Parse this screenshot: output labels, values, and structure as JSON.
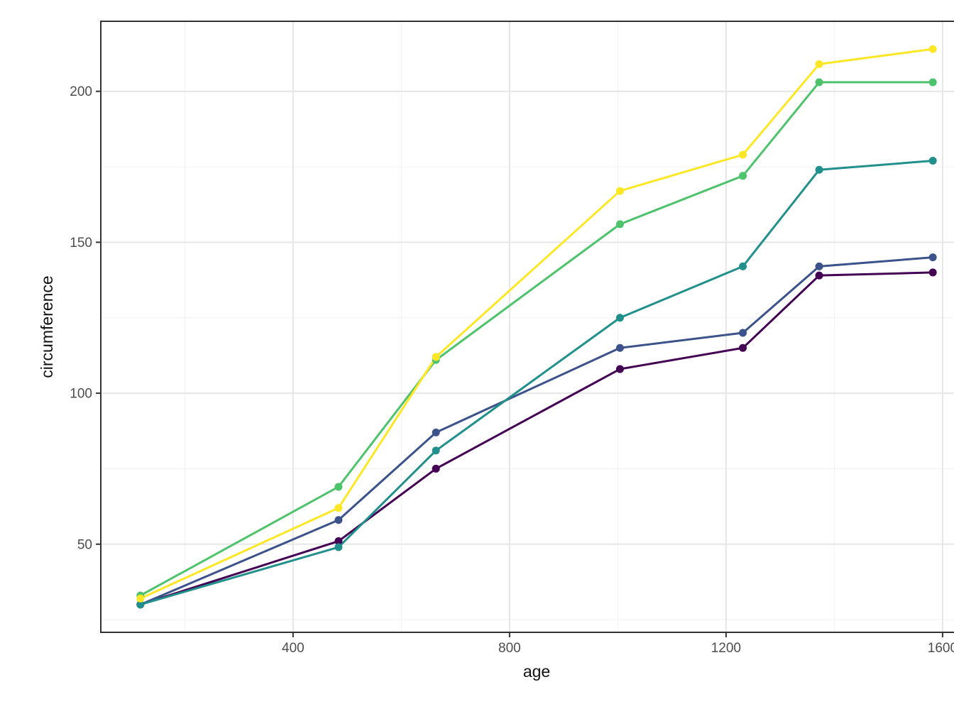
{
  "chart_data": {
    "type": "line",
    "title": "",
    "xlabel": "age",
    "ylabel": "circumference",
    "x": [
      118,
      484,
      664,
      1004,
      1231,
      1372,
      1582
    ],
    "series": [
      {
        "name": "purple",
        "color": "#440154",
        "values": [
          30,
          51,
          75,
          108,
          115,
          139,
          140
        ]
      },
      {
        "name": "blue",
        "color": "#3B528B",
        "values": [
          30,
          58,
          87,
          115,
          120,
          142,
          145
        ]
      },
      {
        "name": "teal",
        "color": "#21908C",
        "values": [
          30,
          49,
          81,
          125,
          142,
          174,
          177
        ]
      },
      {
        "name": "green",
        "color": "#4DC36B",
        "values": [
          33,
          69,
          111,
          156,
          172,
          203,
          203
        ]
      },
      {
        "name": "yellow",
        "color": "#FDE725",
        "values": [
          32,
          62,
          112,
          167,
          179,
          209,
          214
        ]
      }
    ],
    "x_ticks": [
      400,
      800,
      1200,
      1600
    ],
    "y_ticks": [
      50,
      100,
      150,
      200
    ],
    "x_minor_ticks": [
      200,
      600,
      1000,
      1400
    ],
    "y_minor_ticks": [
      25,
      75,
      125,
      175
    ],
    "xlim": [
      44.8,
      1655.2
    ],
    "ylim": [
      20.8,
      223.2
    ],
    "grid": true,
    "legend_position": "none",
    "colors": {
      "background": "#FFFFFF",
      "panel_background": "#FFFFFF",
      "grid_major": "#E6E6E6",
      "grid_minor": "#F1F1F1",
      "panel_border": "#333333",
      "tick_mark": "#333333",
      "tick_label": "#4D4D4D",
      "axis_title": "#111111"
    }
  }
}
